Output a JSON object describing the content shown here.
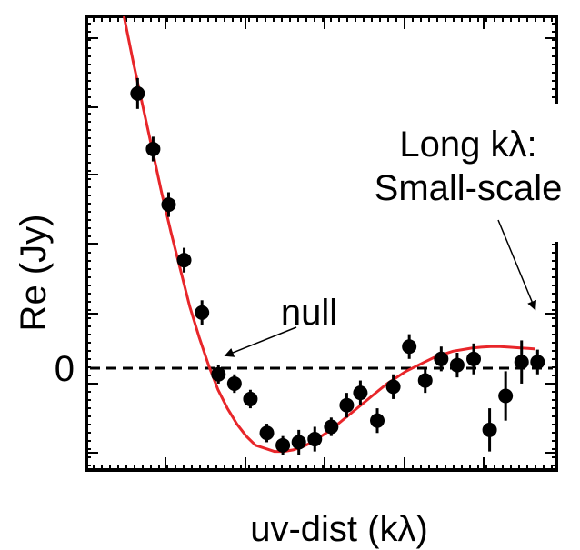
{
  "chart_data": {
    "type": "scatter",
    "title": "",
    "xlabel": "uv-dist (kλ)",
    "ylabel": "Re (Jy)",
    "xlim": [
      0,
      100
    ],
    "ylim": [
      -0.33,
      1.14
    ],
    "y_tick_labels": [
      {
        "value": 0,
        "label": "0"
      }
    ],
    "zero_line": "dashed",
    "grid": false,
    "legend": "none",
    "colors": {
      "points": "#000000",
      "model": "#e8262a",
      "axes": "#000000"
    },
    "series": [
      {
        "kind": "points_with_errorbars",
        "points": [
          {
            "x": 10.9,
            "y": 0.89,
            "err": 0.05
          },
          {
            "x": 14.2,
            "y": 0.71,
            "err": 0.04
          },
          {
            "x": 17.5,
            "y": 0.53,
            "err": 0.04
          },
          {
            "x": 20.8,
            "y": 0.35,
            "err": 0.04
          },
          {
            "x": 24.6,
            "y": 0.18,
            "err": 0.04
          },
          {
            "x": 28.1,
            "y": -0.02,
            "err": 0.03
          },
          {
            "x": 31.5,
            "y": -0.05,
            "err": 0.03
          },
          {
            "x": 34.9,
            "y": -0.1,
            "err": 0.03
          },
          {
            "x": 38.4,
            "y": -0.21,
            "err": 0.03
          },
          {
            "x": 41.8,
            "y": -0.25,
            "err": 0.03
          },
          {
            "x": 45.2,
            "y": -0.24,
            "err": 0.04
          },
          {
            "x": 48.6,
            "y": -0.23,
            "err": 0.04
          },
          {
            "x": 52.1,
            "y": -0.19,
            "err": 0.03
          },
          {
            "x": 55.4,
            "y": -0.12,
            "err": 0.04
          },
          {
            "x": 58.3,
            "y": -0.08,
            "err": 0.04
          },
          {
            "x": 61.9,
            "y": -0.17,
            "err": 0.04
          },
          {
            "x": 65.3,
            "y": -0.06,
            "err": 0.04
          },
          {
            "x": 68.7,
            "y": 0.07,
            "err": 0.04
          },
          {
            "x": 72.1,
            "y": -0.04,
            "err": 0.04
          },
          {
            "x": 75.5,
            "y": 0.03,
            "err": 0.04
          },
          {
            "x": 78.9,
            "y": 0.01,
            "err": 0.04
          },
          {
            "x": 82.4,
            "y": 0.03,
            "err": 0.05
          },
          {
            "x": 85.8,
            "y": -0.2,
            "err": 0.07
          },
          {
            "x": 89.2,
            "y": -0.09,
            "err": 0.08
          },
          {
            "x": 92.6,
            "y": 0.02,
            "err": 0.07
          },
          {
            "x": 96.0,
            "y": 0.02,
            "err": 0.04
          }
        ]
      },
      {
        "kind": "model_curve",
        "line": "solid",
        "x": [
          8.0,
          10.0,
          12.0,
          14.0,
          16.0,
          18.0,
          20.0,
          22.0,
          24.0,
          26.0,
          28.0,
          30.0,
          32.0,
          34.0,
          36.0,
          38.0,
          40.0,
          42.0,
          44.0,
          46.0,
          48.0,
          50.0,
          52.0,
          54.0,
          56.0,
          58.0,
          60.0,
          62.0,
          64.0,
          66.0,
          68.0,
          70.0,
          72.0,
          74.0,
          76.0,
          78.0,
          80.0,
          82.0,
          84.0,
          86.0,
          88.0,
          90.0,
          92.0,
          94.0,
          95.5
        ],
        "y": [
          1.14,
          0.99,
          0.85,
          0.71,
          0.57,
          0.44,
          0.32,
          0.2,
          0.1,
          0.01,
          -0.07,
          -0.13,
          -0.18,
          -0.22,
          -0.25,
          -0.26,
          -0.27,
          -0.27,
          -0.265,
          -0.255,
          -0.24,
          -0.22,
          -0.2,
          -0.175,
          -0.15,
          -0.125,
          -0.1,
          -0.075,
          -0.05,
          -0.03,
          -0.01,
          0.005,
          0.02,
          0.035,
          0.045,
          0.055,
          0.06,
          0.065,
          0.068,
          0.07,
          0.07,
          0.068,
          0.066,
          0.064,
          0.062
        ]
      }
    ],
    "annotations": [
      {
        "lines": [
          "null"
        ],
        "points_to": {
          "x": 29.5,
          "y": 0.04
        }
      },
      {
        "lines": [
          "Long kλ:",
          "Small-scale"
        ],
        "points_to": {
          "x": 95.5,
          "y": 0.19
        }
      }
    ]
  }
}
